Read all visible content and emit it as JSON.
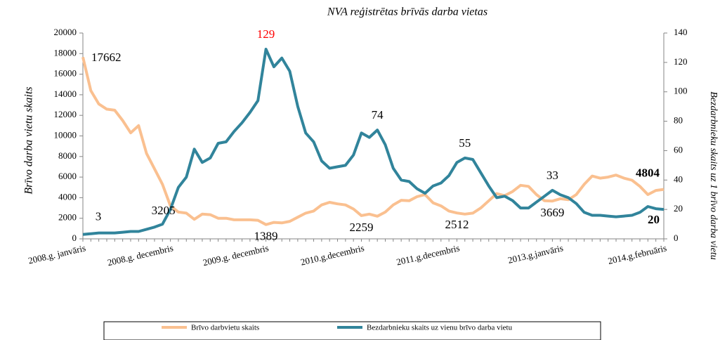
{
  "chart_data": {
    "type": "line",
    "title": "NVA reģistrētas brīvās darba vietas",
    "y_label": "Brīvo darba vietu skaits",
    "y2_label": "Bezdarbnieku skaits uz 1 brīvo darba vietu",
    "categories": [
      "2008.g. janvāris",
      null,
      null,
      null,
      null,
      null,
      null,
      null,
      null,
      null,
      null,
      "2008.g. decembris",
      null,
      null,
      null,
      null,
      null,
      null,
      null,
      null,
      null,
      null,
      null,
      "2009.g. decembris",
      null,
      null,
      null,
      null,
      null,
      null,
      null,
      null,
      null,
      null,
      null,
      "2010.g.decembris",
      null,
      null,
      null,
      null,
      null,
      null,
      null,
      null,
      null,
      null,
      null,
      "2011.g.decembris",
      null,
      null,
      null,
      null,
      null,
      null,
      null,
      null,
      null,
      null,
      null,
      null,
      "2013.g.janvāris",
      null,
      null,
      null,
      null,
      null,
      null,
      null,
      null,
      null,
      null,
      null,
      null,
      "2014.g.februāris"
    ],
    "series": [
      {
        "name": "Brīvo darbvietu skaits",
        "color": "#fac090",
        "axis": "y",
        "values": [
          17662,
          14400,
          13100,
          12600,
          12500,
          11500,
          10300,
          11000,
          8300,
          6800,
          5300,
          3205,
          2600,
          2500,
          1900,
          2400,
          2350,
          2000,
          2000,
          1850,
          1850,
          1850,
          1800,
          1389,
          1600,
          1550,
          1700,
          2100,
          2500,
          2700,
          3300,
          3550,
          3400,
          3300,
          2900,
          2259,
          2400,
          2200,
          2600,
          3300,
          3750,
          3700,
          4100,
          4300,
          3500,
          3200,
          2700,
          2512,
          2400,
          2500,
          3000,
          3700,
          4400,
          4200,
          4600,
          5200,
          5100,
          4300,
          3700,
          3669,
          3900,
          3800,
          4300,
          5300,
          6100,
          5900,
          6000,
          6200,
          5900,
          5700,
          5100,
          4300,
          4700,
          4804
        ],
        "value_labels": [
          "17662",
          null,
          null,
          null,
          null,
          null,
          null,
          null,
          null,
          null,
          null,
          "3205",
          null,
          null,
          null,
          null,
          null,
          null,
          null,
          null,
          null,
          null,
          null,
          "1389",
          null,
          null,
          null,
          null,
          null,
          null,
          null,
          null,
          null,
          null,
          null,
          "2259",
          null,
          null,
          null,
          null,
          null,
          null,
          null,
          null,
          null,
          null,
          null,
          "2512",
          null,
          null,
          null,
          null,
          null,
          null,
          null,
          null,
          null,
          null,
          null,
          "3669",
          null,
          null,
          null,
          null,
          null,
          null,
          null,
          null,
          null,
          null,
          null,
          null,
          null,
          "4804"
        ]
      },
      {
        "name": "Bezdarbnieku skaits uz vienu brīvo darba vietu",
        "color": "#31849b",
        "axis": "y2",
        "values": [
          3,
          3.5,
          4,
          4,
          4,
          4.5,
          5,
          5,
          6.5,
          8,
          10,
          20,
          35,
          42,
          61,
          52,
          55,
          65,
          66,
          73,
          79,
          86,
          94,
          129,
          117,
          123,
          114,
          90,
          72,
          66,
          53,
          48,
          49,
          50,
          57,
          72,
          69,
          74,
          64,
          48,
          40,
          39,
          34,
          31,
          36,
          38,
          43,
          52,
          55,
          54,
          45,
          36,
          28,
          29,
          26,
          21,
          21,
          25,
          29,
          33,
          30,
          28,
          24,
          18,
          16,
          16,
          15.5,
          15,
          15.5,
          16,
          18,
          22,
          20.5,
          20
        ],
        "value_labels": [
          "3",
          null,
          null,
          null,
          null,
          null,
          null,
          null,
          null,
          null,
          null,
          null,
          null,
          null,
          null,
          null,
          null,
          null,
          null,
          null,
          null,
          null,
          null,
          "129",
          null,
          null,
          null,
          null,
          null,
          null,
          null,
          null,
          null,
          null,
          null,
          null,
          null,
          "74",
          null,
          null,
          null,
          null,
          null,
          null,
          null,
          null,
          null,
          null,
          "55",
          null,
          null,
          null,
          null,
          null,
          null,
          null,
          null,
          null,
          null,
          "33",
          null,
          null,
          null,
          null,
          null,
          null,
          null,
          null,
          null,
          null,
          null,
          null,
          null,
          "20"
        ]
      }
    ],
    "ylim": [
      0,
      20000
    ],
    "yticks": [
      0,
      2000,
      4000,
      6000,
      8000,
      10000,
      12000,
      14000,
      16000,
      18000,
      20000
    ],
    "y2lim": [
      0,
      140
    ],
    "y2ticks": [
      0,
      20,
      40,
      60,
      80,
      100,
      120,
      140
    ],
    "legend": "bottom"
  }
}
